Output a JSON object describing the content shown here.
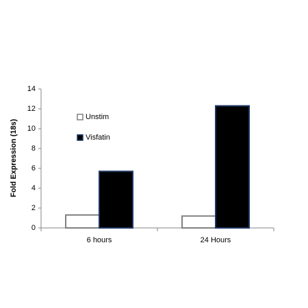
{
  "chart_data": {
    "type": "bar",
    "y_label": "Fold Expression (18s)",
    "categories": [
      "6 hours",
      "24 Hours"
    ],
    "series": [
      {
        "name": "Unstim",
        "color": "#ffffff",
        "edge": "#808080",
        "values": [
          1.3,
          1.2
        ]
      },
      {
        "name": "Visfatin",
        "color": "#000000",
        "edge": "#1f3864",
        "values": [
          5.7,
          12.3
        ]
      }
    ],
    "ylim": [
      0,
      14
    ],
    "yticks": [
      0,
      2,
      4,
      6,
      8,
      10,
      12,
      14
    ],
    "legend": "upper-left"
  }
}
